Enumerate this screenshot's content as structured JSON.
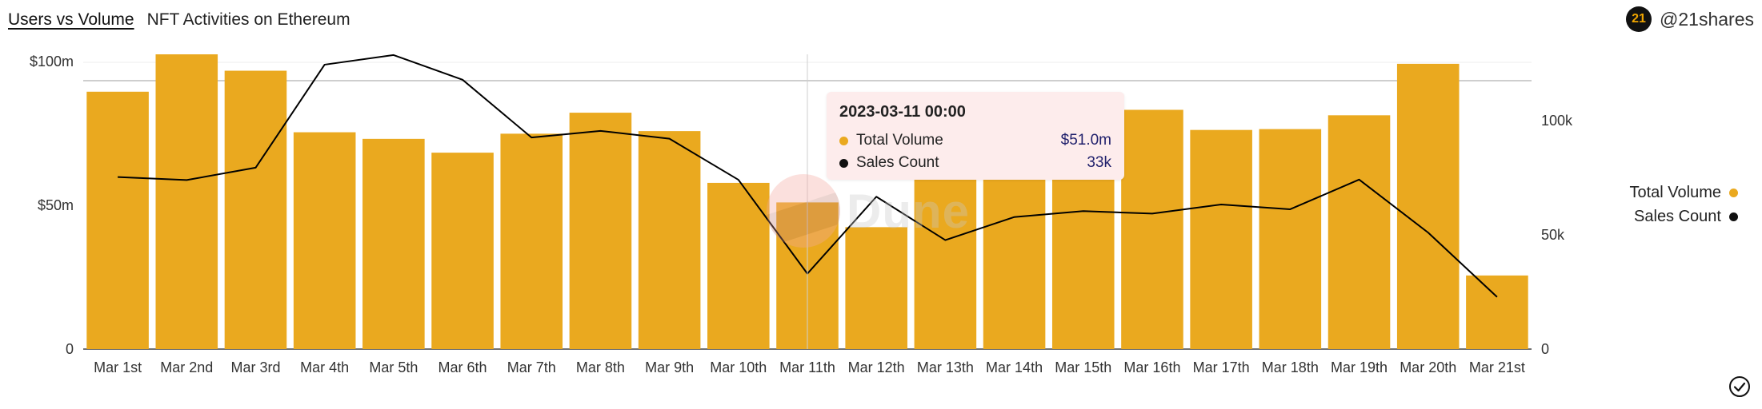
{
  "header": {
    "tab_label": "Users vs Volume",
    "subtitle": "NFT Activities on Ethereum"
  },
  "brand": {
    "logo_text": "21",
    "handle": "@21shares"
  },
  "watermark": {
    "text": "Dune"
  },
  "colors": {
    "bar": "#eaa91f",
    "line": "#000000",
    "grid": "#eeeeee",
    "tooltip_bg": "#fdecec",
    "tooltip_value": "#1f1f6b"
  },
  "legend": {
    "items": [
      {
        "label": "Total Volume",
        "color": "#eaa91f"
      },
      {
        "label": "Sales Count",
        "color": "#111111"
      }
    ]
  },
  "tooltip": {
    "title": "2023-03-11 00:00",
    "rows": [
      {
        "label": "Total Volume",
        "value": "$51.0m",
        "color": "#eaa91f"
      },
      {
        "label": "Sales Count",
        "value": "33k",
        "color": "#111111"
      }
    ]
  },
  "chart_data": {
    "type": "bar",
    "categories": [
      "Mar 1st",
      "Mar 2nd",
      "Mar 3rd",
      "Mar 4th",
      "Mar 5th",
      "Mar 6th",
      "Mar 7th",
      "Mar 8th",
      "Mar 9th",
      "Mar 10th",
      "Mar 11th",
      "Mar 12th",
      "Mar 13th",
      "Mar 14th",
      "Mar 15th",
      "Mar 16th",
      "Mar 17th",
      "Mar 18th",
      "Mar 19th",
      "Mar 20th",
      "Mar 21st"
    ],
    "series": [
      {
        "name": "Total Volume",
        "type": "bar",
        "axis": "left",
        "values": [
          89.5,
          102.5,
          96.8,
          75.4,
          73.1,
          68.3,
          74.9,
          82.2,
          75.8,
          57.8,
          51.0,
          42.4,
          60.5,
          60.9,
          62.5,
          83.2,
          76.2,
          76.5,
          81.3,
          99.2,
          25.6
        ]
      },
      {
        "name": "Sales Count",
        "type": "line",
        "axis": "right",
        "values": [
          75300,
          74000,
          79400,
          124500,
          128700,
          117900,
          92600,
          95500,
          92100,
          74100,
          33000,
          66700,
          47700,
          57800,
          60400,
          59300,
          63300,
          61200,
          74200,
          51000,
          22800
        ]
      }
    ],
    "y_left": {
      "ticks": [
        0,
        50,
        100
      ],
      "tick_labels": [
        "0",
        "$50m",
        "$100m"
      ],
      "ylim": [
        0,
        100
      ]
    },
    "y_right": {
      "ticks": [
        0,
        50000,
        100000
      ],
      "tick_labels": [
        "0",
        "50k",
        "100k"
      ]
    },
    "grid": true,
    "legend_position": "right",
    "highlight_category": "Mar 11th"
  }
}
